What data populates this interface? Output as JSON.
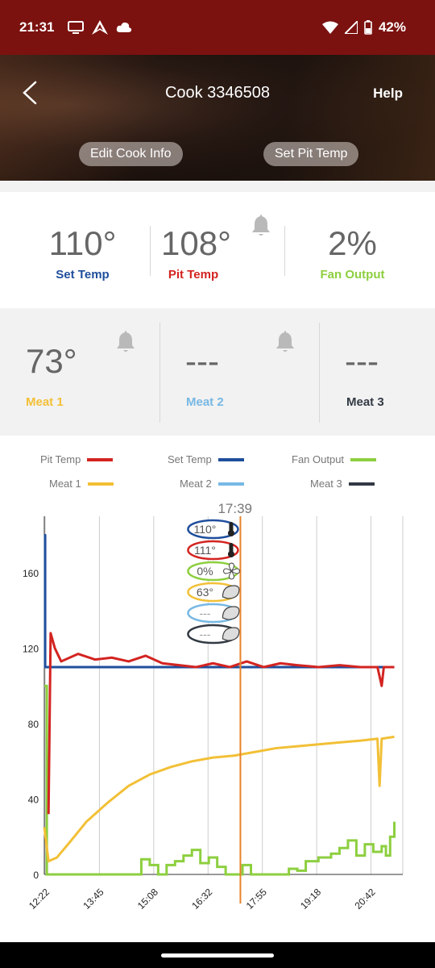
{
  "status": {
    "time": "21:31",
    "battery": "42%"
  },
  "header": {
    "title": "Cook 3346508",
    "help_label": "Help",
    "edit_label": "Edit Cook Info",
    "setpit_label": "Set Pit Temp"
  },
  "stats": {
    "set_temp": {
      "value": "110°",
      "label": "Set Temp",
      "color": "#1f4e9c"
    },
    "pit_temp": {
      "value": "108°",
      "label": "Pit Temp",
      "color": "#d32421"
    },
    "fan_output": {
      "value": "2%",
      "label": "Fan Output",
      "color": "#8dcf3f"
    }
  },
  "meats": {
    "meat1": {
      "value": "73°",
      "label": "Meat 1",
      "color": "#f2c037"
    },
    "meat2": {
      "value": "---",
      "label": "Meat 2",
      "color": "#77b8e4"
    },
    "meat3": {
      "value": "---",
      "label": "Meat 3",
      "color": "#333a44"
    }
  },
  "legend": [
    {
      "name": "Pit Temp",
      "color": "#d32421"
    },
    {
      "name": "Set Temp",
      "color": "#1f4e9c"
    },
    {
      "name": "Fan Output",
      "color": "#8dcf3f"
    },
    {
      "name": "Meat 1",
      "color": "#f2c037"
    },
    {
      "name": "Meat 2",
      "color": "#77b8e4"
    },
    {
      "name": "Meat 3",
      "color": "#333a44"
    }
  ],
  "chart_data": {
    "type": "line",
    "x_ticks": [
      "12:22",
      "13:45",
      "15:08",
      "16:32",
      "17:55",
      "19:18",
      "20:42"
    ],
    "y_ticks": [
      0,
      40,
      80,
      120,
      160
    ],
    "ylim": [
      0,
      190
    ],
    "xlim": [
      0,
      8.5
    ],
    "grid": true,
    "cursor": {
      "time": "17:39",
      "x": 4.65,
      "values": [
        {
          "text": "110°",
          "color": "#1f4e9c",
          "icon": "thermometer-icon"
        },
        {
          "text": "111°",
          "color": "#d32421",
          "icon": "thermometer-icon"
        },
        {
          "text": "0%",
          "color": "#8dcf3f",
          "icon": "fan-icon"
        },
        {
          "text": "63°",
          "color": "#f2c037",
          "icon": "meat-icon"
        },
        {
          "text": "---",
          "color": "#77b8e4",
          "icon": "meat-icon"
        },
        {
          "text": "---",
          "color": "#333a44",
          "icon": "meat-icon"
        }
      ]
    },
    "series": [
      {
        "name": "Set Temp",
        "color": "#1f4e9c",
        "points": [
          [
            0,
            180
          ],
          [
            0.02,
            180
          ],
          [
            0.02,
            110
          ],
          [
            8.3,
            110
          ]
        ]
      },
      {
        "name": "Pit Temp",
        "color": "#d32421",
        "points": [
          [
            0.1,
            32
          ],
          [
            0.15,
            128
          ],
          [
            0.25,
            120
          ],
          [
            0.4,
            113
          ],
          [
            0.8,
            117
          ],
          [
            1.2,
            114
          ],
          [
            1.6,
            115
          ],
          [
            2.0,
            113
          ],
          [
            2.4,
            116
          ],
          [
            2.8,
            112
          ],
          [
            3.2,
            111
          ],
          [
            3.6,
            110
          ],
          [
            4.0,
            112
          ],
          [
            4.4,
            110
          ],
          [
            4.8,
            113
          ],
          [
            5.2,
            110
          ],
          [
            5.6,
            112
          ],
          [
            6.0,
            111
          ],
          [
            6.5,
            110
          ],
          [
            7.0,
            111
          ],
          [
            7.5,
            110
          ],
          [
            7.9,
            110
          ],
          [
            8.0,
            100
          ],
          [
            8.05,
            110
          ],
          [
            8.3,
            110
          ]
        ]
      },
      {
        "name": "Meat 1",
        "color": "#f2c037",
        "points": [
          [
            0,
            25
          ],
          [
            0.1,
            7
          ],
          [
            0.3,
            9
          ],
          [
            0.6,
            17
          ],
          [
            1.0,
            28
          ],
          [
            1.5,
            38
          ],
          [
            2.0,
            47
          ],
          [
            2.5,
            53
          ],
          [
            3.0,
            57
          ],
          [
            3.5,
            60
          ],
          [
            4.0,
            62
          ],
          [
            4.5,
            63
          ],
          [
            5.0,
            65
          ],
          [
            5.5,
            67
          ],
          [
            6.0,
            68
          ],
          [
            6.5,
            69
          ],
          [
            7.0,
            70
          ],
          [
            7.5,
            71
          ],
          [
            7.9,
            72
          ],
          [
            7.95,
            47
          ],
          [
            8.0,
            72
          ],
          [
            8.3,
            73
          ]
        ]
      },
      {
        "name": "Fan Output",
        "color": "#8dcf3f",
        "points": [
          [
            0,
            100
          ],
          [
            0.03,
            100
          ],
          [
            0.06,
            0
          ],
          [
            2.2,
            0
          ],
          [
            2.3,
            8
          ],
          [
            2.5,
            5
          ],
          [
            2.7,
            0
          ],
          [
            2.9,
            5
          ],
          [
            3.1,
            7
          ],
          [
            3.3,
            10
          ],
          [
            3.5,
            13
          ],
          [
            3.7,
            6
          ],
          [
            3.9,
            9
          ],
          [
            4.1,
            4
          ],
          [
            4.3,
            0
          ],
          [
            4.6,
            0
          ],
          [
            4.7,
            5
          ],
          [
            4.9,
            0
          ],
          [
            5.6,
            0
          ],
          [
            5.8,
            3
          ],
          [
            6.0,
            2
          ],
          [
            6.2,
            7
          ],
          [
            6.5,
            9
          ],
          [
            6.8,
            11
          ],
          [
            7.0,
            14
          ],
          [
            7.2,
            18
          ],
          [
            7.4,
            10
          ],
          [
            7.6,
            16
          ],
          [
            7.8,
            12
          ],
          [
            8.0,
            15
          ],
          [
            8.1,
            10
          ],
          [
            8.2,
            20
          ],
          [
            8.3,
            28
          ]
        ]
      }
    ]
  }
}
